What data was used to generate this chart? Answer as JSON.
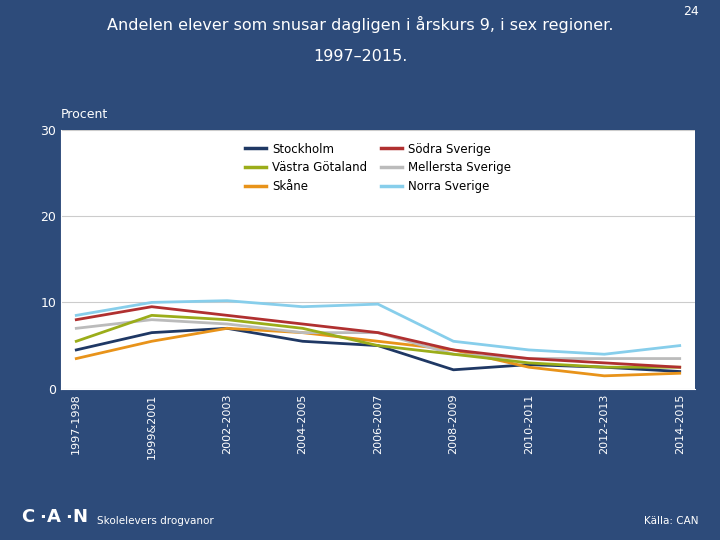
{
  "title_line1": "Andelen elever som snusar dagligen i årskurs 9, i sex regioner.",
  "title_line2": "1997–2015.",
  "ylabel": "Procent",
  "page_number": "24",
  "background_color": "#2D4B7A",
  "plot_bg_color": "#FFFFFF",
  "footer_left": "Skolelevers drogvanor",
  "footer_right": "Källa: CAN",
  "x_labels": [
    "1997-1998",
    "1999&2001",
    "2002-2003",
    "2004-2005",
    "2006-2007",
    "2008-2009",
    "2010-2011",
    "2012-2013",
    "2014-2015"
  ],
  "ylim": [
    0,
    30
  ],
  "yticks": [
    0,
    10,
    20,
    30
  ],
  "series": [
    {
      "label": "Stockholm",
      "color": "#1F3864",
      "linewidth": 2.0,
      "values": [
        4.5,
        6.5,
        7.0,
        5.5,
        5.0,
        2.2,
        2.8,
        2.5,
        2.0
      ]
    },
    {
      "label": "Skåne",
      "color": "#E8931A",
      "linewidth": 2.0,
      "values": [
        3.5,
        5.5,
        7.0,
        6.5,
        5.5,
        4.5,
        2.5,
        1.5,
        1.8
      ]
    },
    {
      "label": "Mellersta Sverige",
      "color": "#BBBBBB",
      "linewidth": 2.0,
      "values": [
        7.0,
        8.0,
        7.5,
        6.5,
        6.5,
        4.0,
        3.5,
        3.5,
        3.5
      ]
    },
    {
      "label": "Västra Götaland",
      "color": "#9BAD1A",
      "linewidth": 2.0,
      "values": [
        5.5,
        8.5,
        8.0,
        7.0,
        5.0,
        4.0,
        3.0,
        2.5,
        2.5
      ]
    },
    {
      "label": "Södra Sverige",
      "color": "#B03030",
      "linewidth": 2.0,
      "values": [
        8.0,
        9.5,
        8.5,
        7.5,
        6.5,
        4.5,
        3.5,
        3.0,
        2.5
      ]
    },
    {
      "label": "Norra Sverige",
      "color": "#87CEEB",
      "linewidth": 2.0,
      "values": [
        8.5,
        10.0,
        10.2,
        9.5,
        9.8,
        5.5,
        4.5,
        4.0,
        5.0
      ]
    }
  ],
  "legend_order": [
    0,
    3,
    1,
    4,
    2,
    5
  ]
}
